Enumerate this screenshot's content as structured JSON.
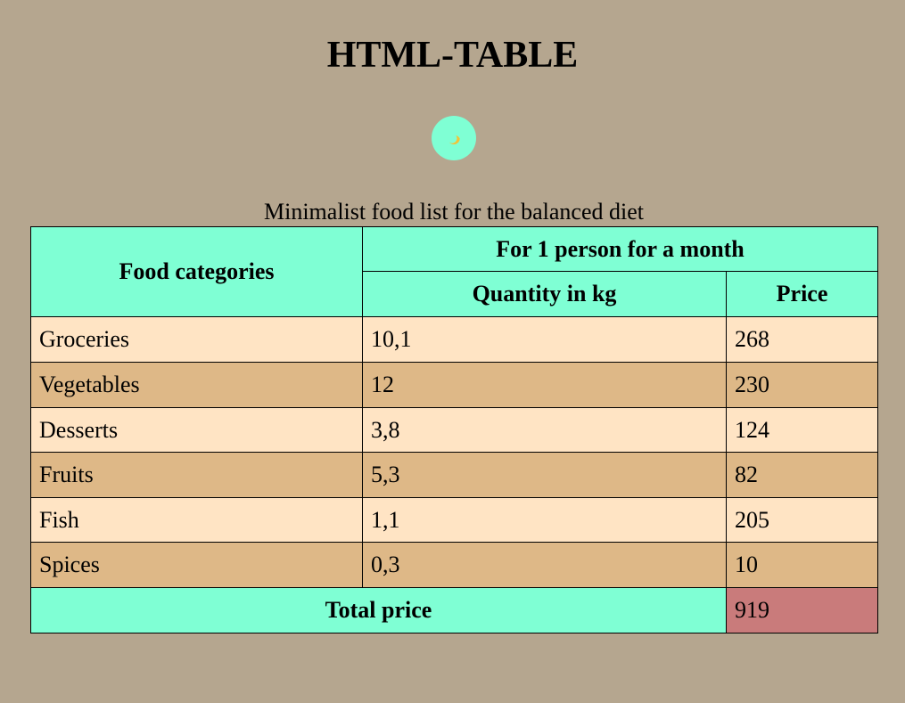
{
  "page": {
    "title": "HTML-TABLE",
    "theme_toggle_icon": "crescent-moon-icon"
  },
  "table": {
    "caption": "Minimalist food list for the balanced diet",
    "header": {
      "categories": "Food categories",
      "group": "For 1 person for a month",
      "quantity": "Quantity in kg",
      "price": "Price"
    },
    "rows": [
      {
        "category": "Groceries",
        "quantity": "10,1",
        "price": "268"
      },
      {
        "category": "Vegetables",
        "quantity": "12",
        "price": "230"
      },
      {
        "category": "Desserts",
        "quantity": "3,8",
        "price": "124"
      },
      {
        "category": "Fruits",
        "quantity": "5,3",
        "price": "82"
      },
      {
        "category": "Fish",
        "quantity": "1,1",
        "price": "205"
      },
      {
        "category": "Spices",
        "quantity": "0,3",
        "price": "10"
      }
    ],
    "total": {
      "label": "Total price",
      "value": "919"
    }
  },
  "colors": {
    "background": "#b5a68f",
    "header": "#7fffd4",
    "row_light": "#ffe4c4",
    "row_dark": "#deb887",
    "total_highlight": "#c97b7b"
  }
}
